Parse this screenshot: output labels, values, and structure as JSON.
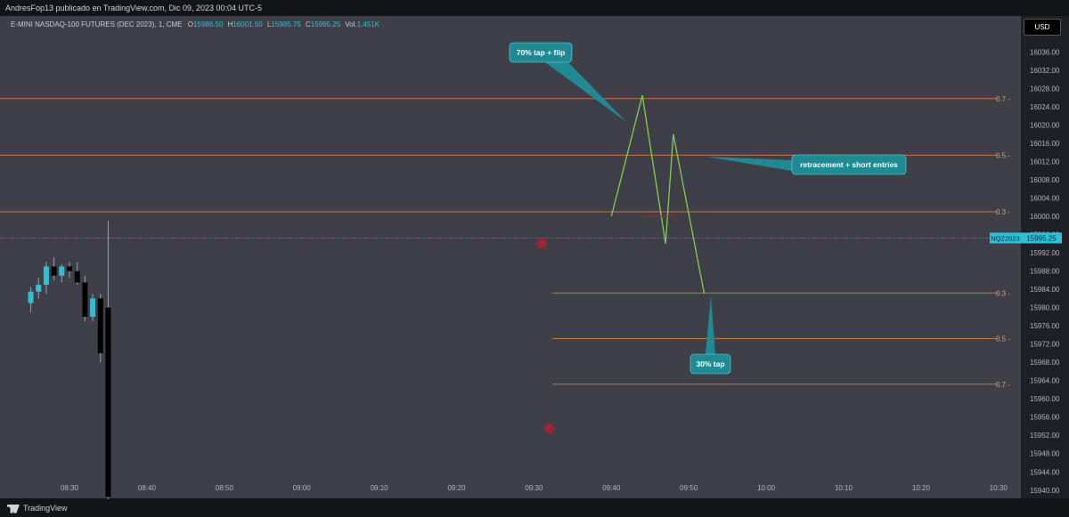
{
  "header": {
    "publisher": "AndresFop13 publicado en TradingView.com, Dic 09, 2023 00:04 UTC-5",
    "symbol_line": "E-MINI NASDAQ-100 FUTURES (DEC 2023), 1, CME",
    "ohlc": {
      "o_label": "O",
      "o": "15986.50",
      "h_label": "H",
      "h": "16001.50",
      "l_label": "L",
      "l": "15985.75",
      "c_label": "C",
      "c": "15995.25",
      "vol_label": "Vol.",
      "vol": "1.451K"
    }
  },
  "currency_button": "USD",
  "footer": {
    "brand": "TradingView"
  },
  "price_badge": {
    "symbol": "NQZ2023",
    "price": "15995.25"
  },
  "annotations": [
    {
      "text": "70% tap + flip"
    },
    {
      "text": "retracement + short entries"
    },
    {
      "text": "30% tap"
    }
  ],
  "fib_sets": [
    {
      "levels": [
        {
          "label": "0.7",
          "price": 16025.8
        },
        {
          "label": "0.5",
          "price": 16013.4
        },
        {
          "label": "0.3",
          "price": 16001.0
        }
      ]
    },
    {
      "levels": [
        {
          "label": "0.3",
          "price": 15983.2
        },
        {
          "label": "0.5",
          "price": 15973.2
        },
        {
          "label": "0.7",
          "price": 15963.2
        }
      ]
    }
  ],
  "colors": {
    "up": "#2ec0d6",
    "down": "#000000",
    "wick": "#9aa0aa",
    "fib_line": "#c8733a",
    "zigzag": "#7fd14a",
    "marker": "#b2202f",
    "price_line": "#2ec0d6"
  },
  "chart_data": {
    "type": "candlestick",
    "x_tick_labels": [
      "08:30",
      "08:40",
      "08:50",
      "09:00",
      "09:10",
      "09:20",
      "09:30",
      "09:40",
      "09:50",
      "10:00",
      "10:10",
      "10:20",
      "10:30"
    ],
    "y_tick_labels": [
      "16036.00",
      "16032.00",
      "16028.00",
      "16024.00",
      "16020.00",
      "16016.00",
      "16012.00",
      "16008.00",
      "16004.00",
      "16000.00",
      "15996.00",
      "15992.00",
      "15988.00",
      "15984.00",
      "15980.00",
      "15976.00",
      "15972.00",
      "15968.00",
      "15964.00",
      "15960.00",
      "15956.00",
      "15952.00",
      "15948.00",
      "15944.00",
      "15940.00"
    ],
    "ylim": [
      15938.2,
      16043.9
    ],
    "candles": [
      {
        "time": "08:25",
        "o": 15981.0,
        "h": 15984.5,
        "l": 15979.0,
        "c": 15983.5
      },
      {
        "time": "08:26",
        "o": 15983.5,
        "h": 15986.5,
        "l": 15982.0,
        "c": 15985.0
      },
      {
        "time": "08:27",
        "o": 15985.0,
        "h": 15990.0,
        "l": 15983.0,
        "c": 15989.0
      },
      {
        "time": "08:28",
        "o": 15989.0,
        "h": 15991.0,
        "l": 15986.0,
        "c": 15987.0
      },
      {
        "time": "08:29",
        "o": 15987.0,
        "h": 15989.5,
        "l": 15985.5,
        "c": 15989.0
      },
      {
        "time": "08:30",
        "o": 15989.0,
        "h": 15990.0,
        "l": 15986.5,
        "c": 15988.0
      },
      {
        "time": "08:31",
        "o": 15988.0,
        "h": 15990.0,
        "l": 15985.0,
        "c": 15985.5
      },
      {
        "time": "08:32",
        "o": 15985.5,
        "h": 15987.0,
        "l": 15977.0,
        "c": 15978.0
      },
      {
        "time": "08:33",
        "o": 15978.0,
        "h": 15983.0,
        "l": 15977.0,
        "c": 15982.0
      },
      {
        "time": "08:34",
        "o": 15982.0,
        "h": 15983.0,
        "l": 15968.0,
        "c": 15970.0
      },
      {
        "time": "08:35",
        "o": 15980.0,
        "h": 15999.0,
        "l": 15938.0,
        "c": 15938.5
      }
    ],
    "last_price": 15995.25,
    "markers": [
      {
        "time": "09:31",
        "price": 15994.0
      },
      {
        "time": "09:32",
        "price": 15953.5
      }
    ],
    "zigzag": [
      {
        "time": "09:40",
        "price": 16000.0
      },
      {
        "time": "09:44",
        "price": 16026.5
      },
      {
        "time": "09:47",
        "price": 15994.0
      },
      {
        "time": "09:48",
        "price": 16018.0
      },
      {
        "time": "09:52",
        "price": 15983.0
      }
    ]
  }
}
